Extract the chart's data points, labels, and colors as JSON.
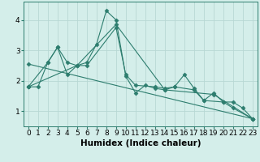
{
  "title": "",
  "xlabel": "Humidex (Indice chaleur)",
  "bg_color": "#d4eeea",
  "line_color": "#2d7d6e",
  "grid_color": "#b8d8d4",
  "series": [
    {
      "x": [
        0,
        1,
        2,
        3,
        4,
        5,
        6,
        7,
        8,
        9,
        10,
        11,
        12,
        13,
        14,
        15,
        16,
        17,
        18,
        19,
        20,
        21,
        22,
        23
      ],
      "y": [
        1.8,
        1.8,
        2.6,
        3.1,
        2.2,
        2.5,
        2.6,
        3.2,
        4.3,
        4.0,
        2.15,
        1.6,
        1.85,
        1.75,
        1.7,
        1.8,
        2.2,
        1.75,
        1.35,
        1.6,
        1.3,
        1.3,
        1.1,
        0.75
      ]
    },
    {
      "x": [
        0,
        2,
        3,
        4,
        5,
        6,
        9,
        10,
        11,
        13,
        14,
        15,
        17,
        18,
        20,
        21,
        23
      ],
      "y": [
        1.8,
        2.6,
        3.1,
        2.6,
        2.5,
        2.5,
        3.75,
        2.2,
        1.85,
        1.8,
        1.75,
        1.8,
        1.7,
        1.35,
        1.3,
        1.1,
        0.75
      ]
    },
    {
      "x": [
        0,
        5,
        9,
        14,
        19,
        23
      ],
      "y": [
        1.8,
        2.5,
        3.85,
        1.7,
        1.55,
        0.75
      ]
    },
    {
      "x": [
        0,
        23
      ],
      "y": [
        2.55,
        0.75
      ]
    }
  ],
  "xlim": [
    -0.5,
    23.5
  ],
  "ylim": [
    0.5,
    4.6
  ],
  "yticks": [
    1,
    2,
    3,
    4
  ],
  "xticks": [
    0,
    1,
    2,
    3,
    4,
    5,
    6,
    7,
    8,
    9,
    10,
    11,
    12,
    13,
    14,
    15,
    16,
    17,
    18,
    19,
    20,
    21,
    22,
    23
  ],
  "tick_fontsize": 6.5,
  "xlabel_fontsize": 7.5,
  "marker": "D",
  "markersize": 2.5
}
